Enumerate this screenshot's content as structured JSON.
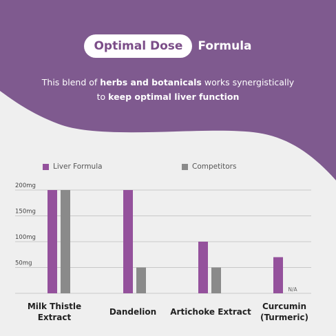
{
  "header": {
    "title_highlight": "Optimal Dose",
    "title_rest": "Formula",
    "subtitle_parts": [
      {
        "text": "This blend of ",
        "bold": false
      },
      {
        "text": "herbs and botanicals",
        "bold": true
      },
      {
        "text": " works synergistically",
        "bold": false
      },
      {
        "text": "to ",
        "bold": false,
        "newline": true
      },
      {
        "text": "keep optimal liver function",
        "bold": true
      }
    ]
  },
  "colors": {
    "brand_purple": "#7f5a8f",
    "liver_bar": "#94519c",
    "competitor_bar": "#8a8a8a",
    "background": "#efefef"
  },
  "chart_data": {
    "type": "bar",
    "categories": [
      "Milk Thistle Extract",
      "Dandelion",
      "Artichoke Extract",
      "Curcumin (Turmeric)"
    ],
    "series": [
      {
        "name": "Liver Formula",
        "values": [
          200,
          200,
          100,
          70
        ]
      },
      {
        "name": "Competitors",
        "values": [
          200,
          50,
          50,
          null
        ]
      }
    ],
    "yticks": [
      "200mg",
      "150mg",
      "100mg",
      "50mg"
    ],
    "ytick_values": [
      200,
      150,
      100,
      50
    ],
    "ylim": [
      0,
      200
    ],
    "na_label": "N/A",
    "legend_position": "top",
    "grid": true
  }
}
